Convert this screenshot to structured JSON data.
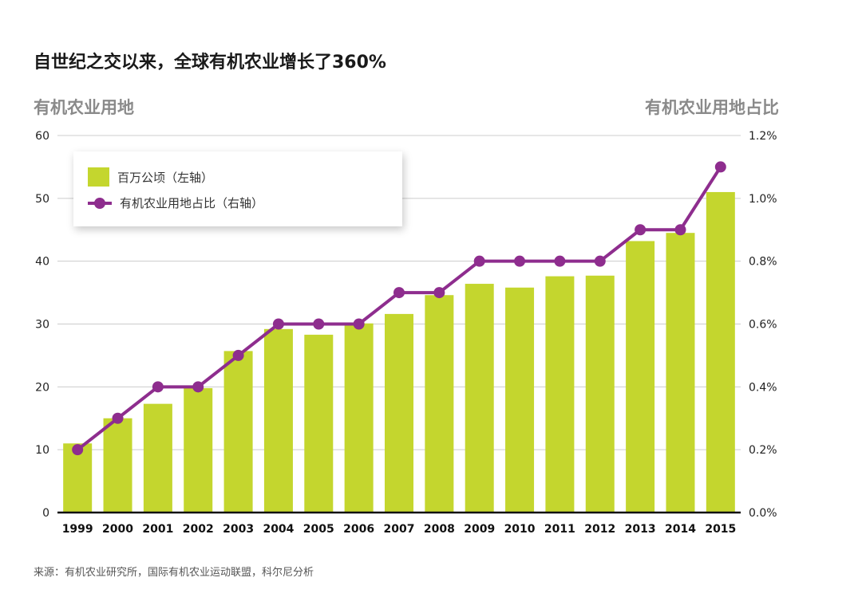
{
  "title": "自世纪之交以来，全球有机农业增长了360%",
  "left_axis_title": "有机农业用地",
  "right_axis_title": "有机农业用地占比",
  "source": "来源：有机农业研究所，国际有机农业运动联盟，科尔尼分析",
  "colors": {
    "bar": "#c4d62e",
    "line": "#8e2d8e",
    "grid": "#cccccc",
    "axis": "#111111"
  },
  "chart_data": {
    "type": "bar+line",
    "categories": [
      "1999",
      "2000",
      "2001",
      "2002",
      "2003",
      "2004",
      "2005",
      "2006",
      "2007",
      "2008",
      "2009",
      "2010",
      "2011",
      "2012",
      "2013",
      "2014",
      "2015"
    ],
    "series": [
      {
        "name": "百万公顷（左轴）",
        "type": "bar",
        "axis": "left",
        "values": [
          11,
          15,
          17.3,
          19.8,
          25.7,
          29.2,
          28.3,
          30.1,
          31.6,
          34.6,
          36.4,
          35.8,
          37.6,
          37.7,
          43.2,
          44.5,
          51
        ]
      },
      {
        "name": "有机农业用地占比（右轴）",
        "type": "line",
        "axis": "right",
        "values": [
          0.2,
          0.3,
          0.4,
          0.4,
          0.5,
          0.6,
          0.6,
          0.6,
          0.7,
          0.7,
          0.8,
          0.8,
          0.8,
          0.8,
          0.9,
          0.9,
          1.1
        ]
      }
    ],
    "left_axis": {
      "min": 0,
      "max": 60,
      "ticks": [
        "0",
        "10",
        "20",
        "30",
        "40",
        "50",
        "60"
      ]
    },
    "right_axis": {
      "min": 0,
      "max": 1.2,
      "ticks": [
        "0.0%",
        "0.2%",
        "0.4%",
        "0.6%",
        "0.8%",
        "1.0%",
        "1.2%"
      ]
    },
    "legend": {
      "position": "top-left"
    },
    "grid": true
  }
}
